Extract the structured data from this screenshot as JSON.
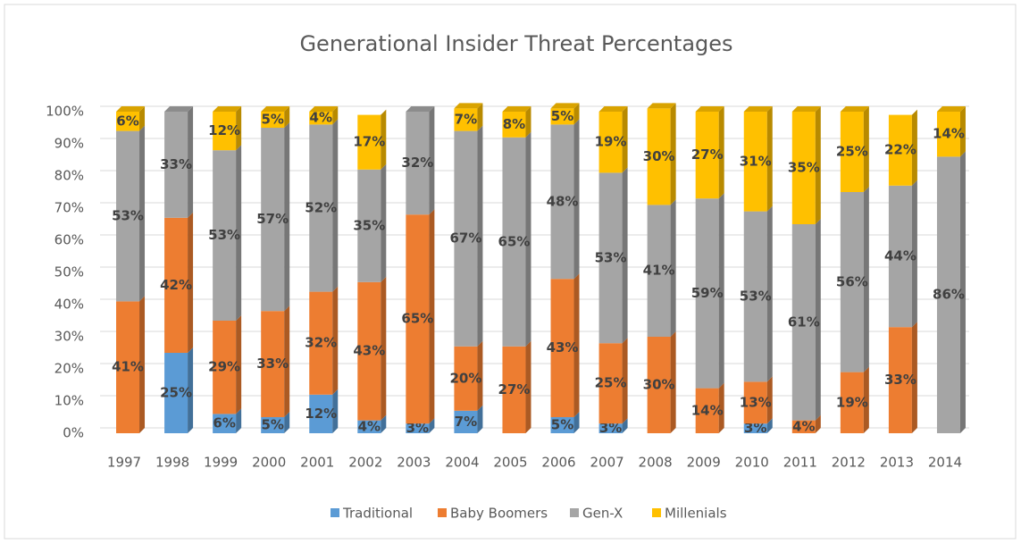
{
  "chart_data": {
    "type": "stacked-bar",
    "title": "Generational Insider Threat Percentages",
    "categories": [
      "1997",
      "1998",
      "1999",
      "2000",
      "2001",
      "2002",
      "2003",
      "2004",
      "2005",
      "2006",
      "2007",
      "2008",
      "2009",
      "2010",
      "2011",
      "2012",
      "2013",
      "2014"
    ],
    "series": [
      {
        "name": "Traditional",
        "color": "#5b9bd5",
        "values": [
          0,
          25,
          6,
          5,
          12,
          4,
          3,
          7,
          0,
          5,
          3,
          0,
          0,
          3,
          0,
          0,
          0,
          0
        ],
        "value_labels": [
          null,
          "25%",
          "6%",
          "5%",
          "12%",
          "4%",
          "3%",
          "7%",
          null,
          "5%",
          "3%",
          null,
          null,
          "3%",
          null,
          null,
          null,
          null
        ]
      },
      {
        "name": "Baby Boomers",
        "color": "#ed7d31",
        "values": [
          41,
          42,
          29,
          33,
          32,
          43,
          65,
          20,
          27,
          43,
          25,
          30,
          14,
          13,
          4,
          19,
          33,
          0
        ],
        "value_labels": [
          "41%",
          "42%",
          "29%",
          "33%",
          "32%",
          "43%",
          "65%",
          "20%",
          "27%",
          "43%",
          "25%",
          "30%",
          "14%",
          "13%",
          "4%",
          "19%",
          "33%",
          null
        ]
      },
      {
        "name": "Gen-X",
        "color": "#a5a5a5",
        "values": [
          53,
          33,
          53,
          57,
          52,
          35,
          32,
          67,
          65,
          48,
          53,
          41,
          59,
          53,
          61,
          56,
          44,
          86
        ],
        "value_labels": [
          "53%",
          "33%",
          "53%",
          "57%",
          "52%",
          "35%",
          "32%",
          "67%",
          "65%",
          "48%",
          "53%",
          "41%",
          "59%",
          "53%",
          "61%",
          "56%",
          "44%",
          "86%"
        ]
      },
      {
        "name": "Millenials",
        "color": "#ffc000",
        "values": [
          6,
          0,
          12,
          5,
          4,
          17,
          0,
          7,
          8,
          5,
          19,
          30,
          27,
          31,
          35,
          25,
          22,
          14
        ],
        "value_labels": [
          "6%",
          null,
          "12%",
          "5%",
          "4%",
          "17%",
          null,
          "7%",
          "8%",
          "5%",
          "19%",
          "30%",
          "27%",
          "31%",
          "35%",
          "25%",
          "22%",
          "14%"
        ]
      }
    ],
    "ylim": [
      0,
      100
    ],
    "yticks": [
      {
        "value": 0,
        "label": "0%"
      },
      {
        "value": 10,
        "label": "10%"
      },
      {
        "value": 20,
        "label": "20%"
      },
      {
        "value": 30,
        "label": "30%"
      },
      {
        "value": 40,
        "label": "40%"
      },
      {
        "value": 50,
        "label": "50%"
      },
      {
        "value": 60,
        "label": "60%"
      },
      {
        "value": 70,
        "label": "70%"
      },
      {
        "value": 80,
        "label": "80%"
      },
      {
        "value": 90,
        "label": "90%"
      },
      {
        "value": 100,
        "label": "100%"
      }
    ],
    "grid": true,
    "legend": "bottom"
  }
}
